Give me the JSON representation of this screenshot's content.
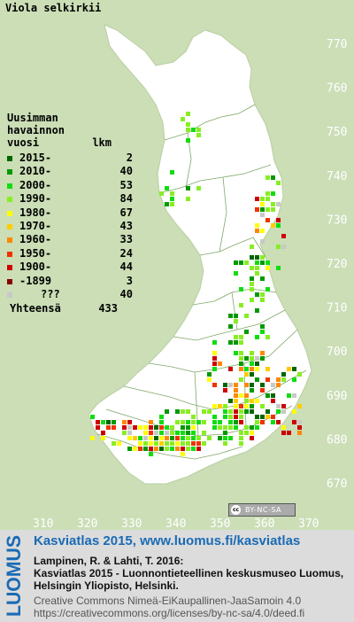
{
  "map": {
    "species": "Viola selkirkii",
    "grid_y_labels": [
      "770",
      "760",
      "750",
      "740",
      "730",
      "720",
      "710",
      "700",
      "690",
      "680",
      "670"
    ],
    "grid_x_labels": [
      "310",
      "320",
      "330",
      "340",
      "350",
      "360",
      "370"
    ],
    "colors": {
      "background": "#cbdeb6",
      "land": "#ffffff",
      "border": "#7fa867",
      "grid_label": "#ffffff"
    }
  },
  "legend": {
    "heading_line1": "Uusimman",
    "heading_line2": "havainnon",
    "heading_line3": "vuosi",
    "count_header": "lkm",
    "items": [
      {
        "label": "2015-",
        "count": "2",
        "color": "#006600"
      },
      {
        "label": "2010-",
        "count": "40",
        "color": "#009900"
      },
      {
        "label": "2000-",
        "count": "53",
        "color": "#11dd11"
      },
      {
        "label": "1990-",
        "count": "84",
        "color": "#88ee22"
      },
      {
        "label": "1980-",
        "count": "67",
        "color": "#ffff00"
      },
      {
        "label": "1970-",
        "count": "43",
        "color": "#ffcc00"
      },
      {
        "label": "1960-",
        "count": "33",
        "color": "#ff8800"
      },
      {
        "label": "1950-",
        "count": "24",
        "color": "#ee3300"
      },
      {
        "label": "1900-",
        "count": "44",
        "color": "#cc0000"
      },
      {
        "label": "-1899",
        "count": "3",
        "color": "#880000"
      },
      {
        "label": "???",
        "count": "40",
        "color": "#c8c8c8"
      }
    ],
    "total_label": "Yhteensä",
    "total_count": "433"
  },
  "license_badge": {
    "cc": "cc",
    "text": "BY-NC-SA"
  },
  "footer": {
    "logo_text": "LUOMUS",
    "title": "Kasviatlas 2015, www.luomus.fi/kasviatlas",
    "citation_line1": "Lampinen, R. & Lahti, T. 2016:",
    "citation_line2": "Kasviatlas 2015 - Luonnontieteellinen keskusmuseo Luomus,",
    "citation_line3": "Helsingin Yliopisto, Helsinki.",
    "license_line1": "Creative Commons Nimeä-EiKaupallinen-JaaSamoin 4.0",
    "license_line2": "https://creativecommons.org/licenses/by-nc-sa/4.0/deed.fi",
    "logo_color": "#1a6bb5"
  }
}
